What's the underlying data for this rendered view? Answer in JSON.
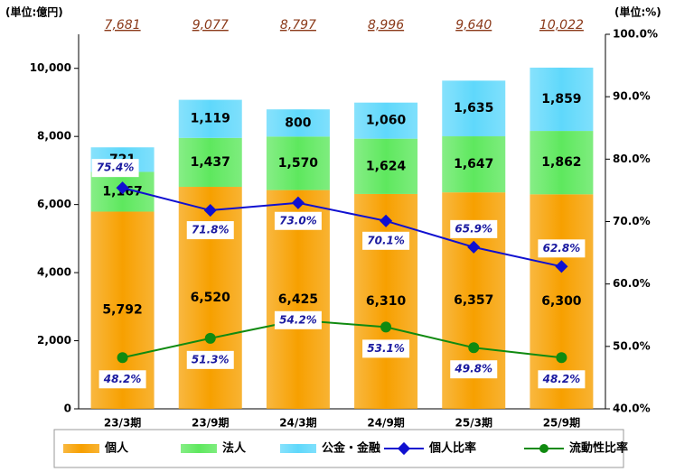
{
  "chart_data": {
    "type": "bar",
    "categories": [
      "23/3期",
      "23/9期",
      "24/3期",
      "24/9期",
      "25/3期",
      "25/9期"
    ],
    "unit_label": "(単位:億円)",
    "unit_label_y2": "(単位:%)",
    "series": [
      {
        "name": "個人",
        "color": "#f7a000",
        "values": [
          5792,
          6520,
          6425,
          6310,
          6357,
          6300
        ],
        "value_labels": [
          "5,792",
          "6,520",
          "6,425",
          "6,310",
          "6,357",
          "6,300"
        ]
      },
      {
        "name": "法人",
        "color": "#5ee85e",
        "values": [
          1167,
          1437,
          1570,
          1624,
          1647,
          1862
        ],
        "value_labels": [
          "1,167",
          "1,437",
          "1,570",
          "1,624",
          "1,647",
          "1,862"
        ]
      },
      {
        "name": "公金・金融",
        "color": "#5fd8fb",
        "values": [
          721,
          1119,
          800,
          1060,
          1635,
          1859
        ],
        "value_labels": [
          "721",
          "1,119",
          "800",
          "1,060",
          "1,635",
          "1,859"
        ]
      },
      {
        "name": "個人比率",
        "type": "line",
        "axis": "y2",
        "color": "#1010d0",
        "values": [
          75.4,
          71.8,
          73.0,
          70.1,
          65.9,
          62.8
        ],
        "value_labels": [
          "75.4%",
          "71.8%",
          "73.0%",
          "70.1%",
          "65.9%",
          "62.8%"
        ]
      },
      {
        "name": "流動性比率",
        "type": "line",
        "axis": "y2",
        "color": "#108a10",
        "values": [
          48.2,
          51.3,
          54.2,
          53.1,
          49.8,
          48.2
        ],
        "value_labels": [
          "48.2%",
          "51.3%",
          "54.2%",
          "53.1%",
          "49.8%",
          "48.2%"
        ]
      }
    ],
    "totals": [
      7681,
      9077,
      8797,
      8996,
      9640,
      10022
    ],
    "totals_labels": [
      "7,681",
      "9,077",
      "8,797",
      "8,996",
      "9,640",
      "10,022"
    ],
    "ylim": [
      0,
      11000
    ],
    "yticks": [
      0,
      {
        "value": 2000,
        "label": "2,000"
      },
      {
        "value": 4000,
        "label": "4,000"
      },
      {
        "value": 6000,
        "label": "6,000"
      },
      {
        "value": 8000,
        "label": "8,000"
      },
      {
        "value": 10000,
        "label": "10,000"
      }
    ],
    "y2lim": [
      40,
      100
    ],
    "y2ticks": [
      {
        "value": 40,
        "label": "40.0%"
      },
      {
        "value": 50,
        "label": "50.0%"
      },
      {
        "value": 60,
        "label": "60.0%"
      },
      {
        "value": 70,
        "label": "70.0%"
      },
      {
        "value": 80,
        "label": "80.0%"
      },
      {
        "value": 90,
        "label": "90.0%"
      },
      {
        "value": 100,
        "label": "100.0%"
      }
    ]
  }
}
